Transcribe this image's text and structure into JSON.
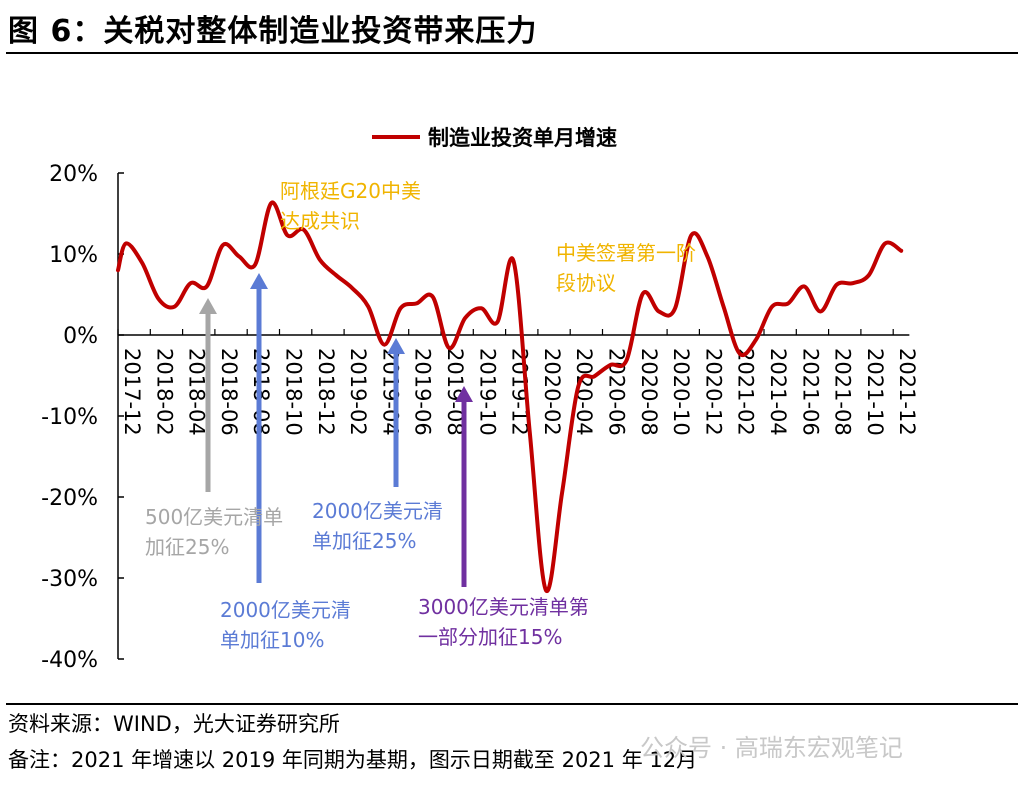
{
  "header": {
    "title": "图 6：关税对整体制造业投资带来压力"
  },
  "footer": {
    "source": "资料来源：WIND，光大证券研究所",
    "note": "备注：2021 年增速以 2019 年同期为基期，图示日期截至 2021 年 12月",
    "watermark": "公众号 · 高瑞东宏观笔记"
  },
  "annotations": {
    "g20": [
      "阿根廷G20中美",
      "达成共识"
    ],
    "phase1": [
      "中美签署第一阶",
      "段协议"
    ],
    "tariff500": [
      "500亿美元清单",
      "加征25%"
    ],
    "tariff2000_10": [
      "2000亿美元清",
      "单加征10%"
    ],
    "tariff2000_25": [
      "2000亿美元清",
      "单加征25%"
    ],
    "tariff3000": [
      "3000亿美元清单第",
      "一部分加征15%"
    ]
  },
  "colors": {
    "line": "#c00000",
    "orange": "#f0b400",
    "gray": "#a6a6a6",
    "blue": "#5b7bd5",
    "purple": "#7030a0"
  },
  "chart_data": {
    "type": "line",
    "title": "",
    "xlabel": "",
    "ylabel": "",
    "ylim": [
      -40,
      20
    ],
    "yticks": [
      "20%",
      "10%",
      "0%",
      "-10%",
      "-20%",
      "-30%",
      "-40%"
    ],
    "ytick_values": [
      20,
      10,
      0,
      -10,
      -20,
      -30,
      -40
    ],
    "grid": false,
    "legend": "top",
    "xtick_labels": [
      "2017-12",
      "2018-02",
      "2018-04",
      "2018-06",
      "2018-08",
      "2018-10",
      "2018-12",
      "2019-02",
      "2019-04",
      "2019-06",
      "2019-08",
      "2019-10",
      "2019-12",
      "2020-02",
      "2020-04",
      "2020-06",
      "2020-08",
      "2020-10",
      "2020-12",
      "2021-02",
      "2021-04",
      "2021-06",
      "2021-08",
      "2021-10",
      "2021-12"
    ],
    "series": [
      {
        "name": "制造业投资单月增速",
        "x": [
          "2017-12",
          "2018-01",
          "2018-02",
          "2018-03",
          "2018-04",
          "2018-05",
          "2018-06",
          "2018-07",
          "2018-08",
          "2018-09",
          "2018-10",
          "2018-11",
          "2018-12",
          "2019-01",
          "2019-02",
          "2019-03",
          "2019-04",
          "2019-05",
          "2019-06",
          "2019-07",
          "2019-08",
          "2019-09",
          "2019-10",
          "2019-11",
          "2019-12",
          "2020-01",
          "2020-02",
          "2020-03",
          "2020-04",
          "2020-05",
          "2020-06",
          "2020-07",
          "2020-08",
          "2020-09",
          "2020-10",
          "2020-11",
          "2020-12",
          "2021-01",
          "2021-02",
          "2021-03",
          "2021-04",
          "2021-05",
          "2021-06",
          "2021-07",
          "2021-08",
          "2021-09",
          "2021-10",
          "2021-11",
          "2021-12"
        ],
        "values": [
          11.3,
          8.9,
          4.5,
          3.5,
          6.4,
          6.0,
          11.1,
          9.7,
          8.7,
          16.3,
          12.3,
          13.0,
          9.3,
          7.4,
          5.8,
          3.5,
          -1.2,
          3.3,
          3.9,
          4.7,
          -1.6,
          2.1,
          3.3,
          1.6,
          9.1,
          -12.0,
          -31.5,
          -19.5,
          -6.4,
          -5.1,
          -3.7,
          -3.1,
          5.1,
          2.9,
          3.3,
          12.3,
          9.7,
          3.5,
          -2.3,
          -0.6,
          3.5,
          3.9,
          6.0,
          2.9,
          6.2,
          6.4,
          7.4,
          11.3,
          10.4
        ]
      }
    ]
  }
}
